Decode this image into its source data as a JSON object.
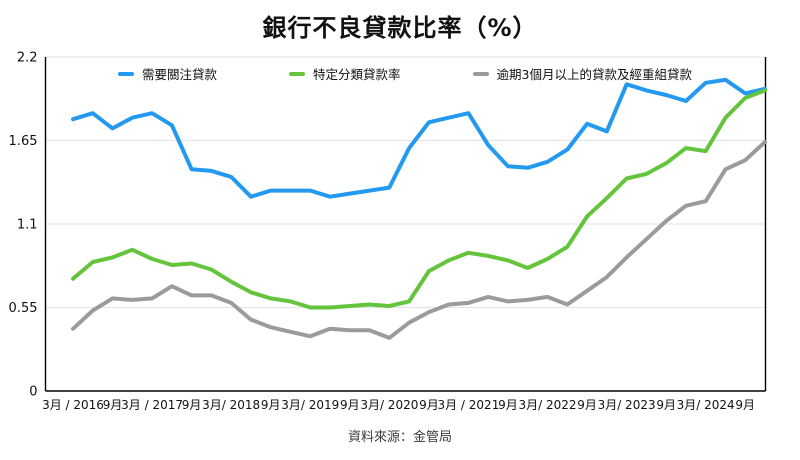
{
  "title": "銀行不良貸款比率（%）",
  "source": "資料來源：金管局",
  "colors": {
    "series_blue": "#2499F0",
    "series_green": "#64C53C",
    "series_gray": "#9B9B9B",
    "grid": "#E3E3E3",
    "axis": "#000000",
    "text": "#111111"
  },
  "legend": {
    "items": [
      {
        "label": "需要關注貸款",
        "color": "#2499F0"
      },
      {
        "label": "特定分類貸款率",
        "color": "#64C53C"
      },
      {
        "label": "逾期3個月以上的貸款及經重組貸款",
        "color": "#9B9B9B"
      }
    ]
  },
  "chart_data": {
    "type": "line",
    "title": "銀行不良貸款比率（%）",
    "xlabel": "",
    "ylabel": "",
    "ylim": [
      0,
      2.2
    ],
    "y_ticks": [
      "2.2",
      "1.65",
      "1.1",
      "0.55",
      "0"
    ],
    "y_tick_values": [
      2.2,
      1.65,
      1.1,
      0.55,
      0
    ],
    "grid": "horizontal",
    "legend_position": "top",
    "x_tick_labels": [
      "3月 / 2016",
      "9月",
      "3月 / 2017",
      "9月",
      "3月/ 2018",
      "9月",
      "3月/ 2019",
      "9月",
      "3月/ 2020",
      "9月",
      "3月 / 2021",
      "9月",
      "3月/ 2022",
      "9月",
      "3月/ 2023",
      "9月",
      "3月/ 2024",
      "9月"
    ],
    "x_note": "quarterly points Mar-2016 to Dec-2024, labels every second point",
    "series": [
      {
        "name": "需要關注貸款",
        "color": "#2499F0",
        "values": [
          1.79,
          1.83,
          1.73,
          1.8,
          1.83,
          1.75,
          1.46,
          1.45,
          1.41,
          1.28,
          1.32,
          1.32,
          1.32,
          1.28,
          1.3,
          1.32,
          1.34,
          1.6,
          1.77,
          1.8,
          1.83,
          1.62,
          1.48,
          1.47,
          1.51,
          1.59,
          1.76,
          1.71,
          2.02,
          1.98,
          1.95,
          1.91,
          2.03,
          2.05,
          1.96,
          1.99
        ]
      },
      {
        "name": "特定分類貸款率",
        "color": "#64C53C",
        "values": [
          0.74,
          0.85,
          0.88,
          0.93,
          0.87,
          0.83,
          0.84,
          0.8,
          0.72,
          0.65,
          0.61,
          0.59,
          0.55,
          0.55,
          0.56,
          0.57,
          0.56,
          0.59,
          0.79,
          0.86,
          0.91,
          0.89,
          0.86,
          0.81,
          0.87,
          0.95,
          1.15,
          1.27,
          1.4,
          1.43,
          1.5,
          1.6,
          1.58,
          1.8,
          1.93,
          1.98
        ]
      },
      {
        "name": "逾期3個月以上的貸款及經重組貸款",
        "color": "#9B9B9B",
        "values": [
          0.41,
          0.53,
          0.61,
          0.6,
          0.61,
          0.69,
          0.63,
          0.63,
          0.58,
          0.47,
          0.42,
          0.39,
          0.36,
          0.41,
          0.4,
          0.4,
          0.35,
          0.45,
          0.52,
          0.57,
          0.58,
          0.62,
          0.59,
          0.6,
          0.62,
          0.57,
          0.66,
          0.75,
          0.88,
          1.0,
          1.12,
          1.22,
          1.25,
          1.46,
          1.52,
          1.64
        ]
      }
    ]
  }
}
